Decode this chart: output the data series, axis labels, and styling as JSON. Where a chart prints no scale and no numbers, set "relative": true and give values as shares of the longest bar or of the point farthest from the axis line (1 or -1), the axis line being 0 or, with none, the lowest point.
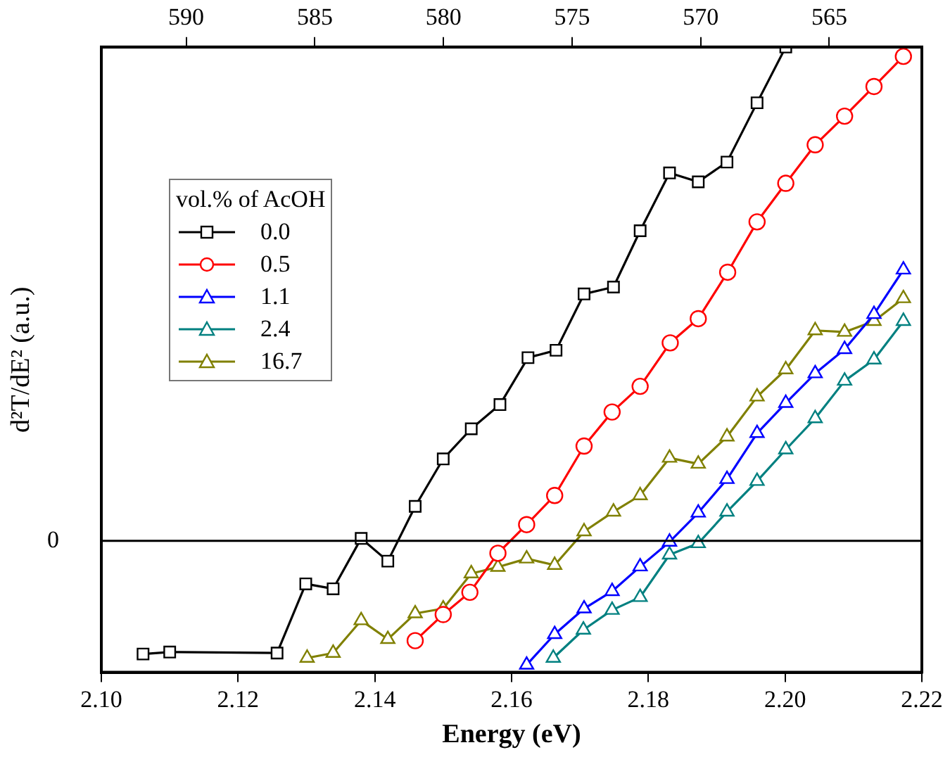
{
  "chart_data": {
    "type": "line",
    "xlabel": "Energy (eV)",
    "ylabel": "d²T/dE² (a.u.)",
    "legend_title": "vol.% of AcOH",
    "relative": true,
    "xlim": [
      2.1,
      2.22
    ],
    "xticks": [
      {
        "value": 2.1,
        "label": "2.10"
      },
      {
        "value": 2.12,
        "label": "2.12"
      },
      {
        "value": 2.14,
        "label": "2.14"
      },
      {
        "value": 2.16,
        "label": "2.16"
      },
      {
        "value": 2.18,
        "label": "2.18"
      },
      {
        "value": 2.2,
        "label": "2.20"
      },
      {
        "value": 2.22,
        "label": "2.22"
      }
    ],
    "x2lim": [
      593.3,
      561.4
    ],
    "x2ticks": [
      590,
      585,
      580,
      575,
      570,
      565
    ],
    "legend": "left",
    "grid": false,
    "line_style": "solid",
    "ref_lines": [
      {
        "axis": "y",
        "value": 0,
        "label": "0",
        "color": "#000000"
      }
    ],
    "series": [
      {
        "name": "0.0",
        "color": "#000000",
        "marker": "square",
        "x": [
          2.1061,
          2.11,
          2.1257,
          2.1299,
          2.1339,
          2.138,
          2.1419,
          2.1459,
          2.15,
          2.1541,
          2.1583,
          2.1624,
          2.1665,
          2.1706,
          2.1749,
          2.1788,
          2.1831,
          2.1873,
          2.1915,
          2.1959,
          2.2001
        ],
        "values": [
          -0.229,
          -0.225,
          -0.227,
          -0.087,
          -0.097,
          0.005,
          -0.041,
          0.07,
          0.166,
          0.227,
          0.276,
          0.371,
          0.386,
          0.5,
          0.514,
          0.628,
          0.745,
          0.727,
          0.767,
          0.887,
          1
        ]
      },
      {
        "name": "0.5",
        "color": "#ff0000",
        "marker": "circle",
        "x": [
          2.1459,
          2.15,
          2.1539,
          2.158,
          2.1622,
          2.1663,
          2.1706,
          2.1747,
          2.1788,
          2.1832,
          2.1873,
          2.1916,
          2.1959,
          2.2001,
          2.2044,
          2.2087,
          2.213,
          2.2173
        ],
        "values": [
          -0.202,
          -0.149,
          -0.104,
          -0.025,
          0.033,
          0.092,
          0.192,
          0.261,
          0.313,
          0.401,
          0.45,
          0.544,
          0.646,
          0.724,
          0.802,
          0.86,
          0.92,
          0.981
        ]
      },
      {
        "name": "1.1",
        "color": "#0000ff",
        "marker": "triangle",
        "x": [
          2.1622,
          2.1663,
          2.1706,
          2.1747,
          2.1788,
          2.1831,
          2.1873,
          2.1915,
          2.1959,
          2.2001,
          2.2044,
          2.2087,
          2.213,
          2.2173
        ],
        "values": [
          -0.251,
          -0.189,
          -0.137,
          -0.102,
          -0.052,
          -0.002,
          0.057,
          0.125,
          0.218,
          0.279,
          0.339,
          0.388,
          0.459,
          0.549
        ]
      },
      {
        "name": "2.4",
        "color": "#008080",
        "marker": "triangle",
        "x": [
          2.1661,
          2.1705,
          2.1747,
          2.1788,
          2.1831,
          2.1873,
          2.1915,
          2.1959,
          2.2001,
          2.2044,
          2.2087,
          2.213,
          2.2173
        ],
        "values": [
          -0.237,
          -0.18,
          -0.14,
          -0.114,
          -0.028,
          -0.005,
          0.059,
          0.121,
          0.185,
          0.248,
          0.324,
          0.367,
          0.445
        ]
      },
      {
        "name": "16.7",
        "color": "#808000",
        "marker": "triangle",
        "x": [
          2.1301,
          2.1339,
          2.138,
          2.1419,
          2.1459,
          2.15,
          2.1541,
          2.158,
          2.1622,
          2.1663,
          2.1706,
          2.1749,
          2.1788,
          2.1831,
          2.1873,
          2.1915,
          2.1959,
          2.2001,
          2.2044,
          2.2087,
          2.213,
          2.2173
        ],
        "values": [
          -0.237,
          -0.227,
          -0.161,
          -0.199,
          -0.147,
          -0.137,
          -0.066,
          -0.053,
          -0.036,
          -0.049,
          0.019,
          0.059,
          0.092,
          0.168,
          0.156,
          0.211,
          0.292,
          0.347,
          0.426,
          0.423,
          0.445,
          0.491
        ]
      }
    ]
  }
}
